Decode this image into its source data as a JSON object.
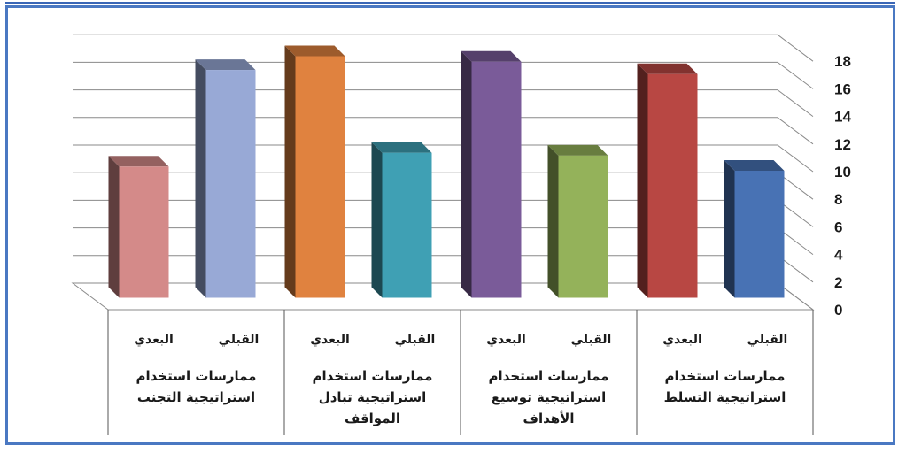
{
  "chart_data": {
    "type": "bar",
    "ylim": [
      0,
      18
    ],
    "yticks": [
      "0",
      "2",
      "4",
      "6",
      "8",
      "10",
      "12",
      "14",
      "16",
      "18"
    ],
    "grid": true,
    "categories": [
      {
        "lines": [
          "ممارسات استخدام",
          "استراتيجية التجنب"
        ],
        "sub_labels": [
          "القبلي",
          "البعدي"
        ],
        "values": [
          16.5,
          9.5
        ],
        "colors": [
          "#98a9d6",
          "#d48a89"
        ]
      },
      {
        "lines": [
          "ممارسات استخدام",
          "استراتيجية تبادل",
          "المواقف"
        ],
        "sub_labels": [
          "القبلي",
          "البعدي"
        ],
        "values": [
          10.5,
          17.5
        ],
        "colors": [
          "#3fa0b4",
          "#e0823f"
        ]
      },
      {
        "lines": [
          "ممارسات استخدام",
          "استراتيجية توسيع",
          "الأهداف"
        ],
        "sub_labels": [
          "القبلي",
          "البعدي"
        ],
        "values": [
          10.3,
          17.1
        ],
        "colors": [
          "#94b25a",
          "#7a5b99"
        ]
      },
      {
        "lines": [
          "ممارسات استخدام",
          "استراتيجية التسلط"
        ],
        "sub_labels": [
          "القبلي",
          "البعدي"
        ],
        "values": [
          9.2,
          16.2
        ],
        "colors": [
          "#4872b4",
          "#b84743"
        ]
      }
    ]
  }
}
